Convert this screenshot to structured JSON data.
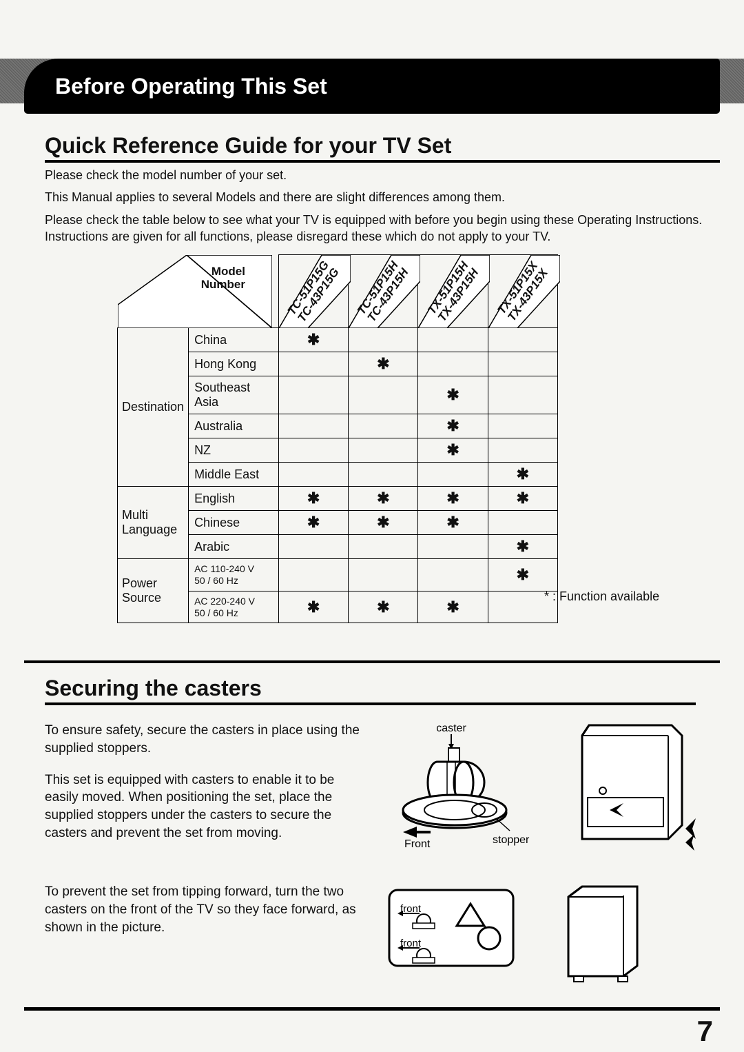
{
  "banner_title": "Before Operating This Set",
  "section1_title": "Quick Reference Guide for your TV Set",
  "intro_p1": "Please check the model number of your set.",
  "intro_p2": "This Manual applies to several Models and there are slight differences among them.",
  "intro_p3": "Please check the table below to see what your TV is equipped with before you begin using these Operating Instructions. Instructions are given for all functions, please disregard these which do not apply to your TV.",
  "model_table": {
    "header_label": "Model\nNumber",
    "columns": [
      {
        "line1": "TC-51P15G",
        "line2": "TC-43P15G"
      },
      {
        "line1": "TC-51P15H",
        "line2": "TC-43P15H"
      },
      {
        "line1": "TX-51P15H",
        "line2": "TX-43P15H"
      },
      {
        "line1": "TX-51P15X",
        "line2": "TX-43P15X"
      }
    ],
    "groups": [
      {
        "name": "Destination",
        "rows": [
          {
            "label": "China",
            "marks": [
              "*",
              "",
              "",
              ""
            ]
          },
          {
            "label": "Hong  Kong",
            "marks": [
              "",
              "*",
              "",
              ""
            ]
          },
          {
            "label": "Southeast Asia",
            "marks": [
              "",
              "",
              "*",
              ""
            ]
          },
          {
            "label": "Australia",
            "marks": [
              "",
              "",
              "*",
              ""
            ]
          },
          {
            "label": "NZ",
            "marks": [
              "",
              "",
              "*",
              ""
            ]
          },
          {
            "label": "Middle East",
            "marks": [
              "",
              "",
              "",
              "*"
            ]
          }
        ]
      },
      {
        "name": "Multi\nLanguage",
        "rows": [
          {
            "label": "English",
            "marks": [
              "*",
              "*",
              "*",
              "*"
            ]
          },
          {
            "label": "Chinese",
            "marks": [
              "*",
              "*",
              "*",
              ""
            ]
          },
          {
            "label": "Arabic",
            "marks": [
              "",
              "",
              "",
              "*"
            ]
          }
        ]
      },
      {
        "name": "Power\nSource",
        "rows": [
          {
            "label": "AC 110-240 V\n50 / 60 Hz",
            "small": true,
            "marks": [
              "",
              "",
              "",
              "*"
            ]
          },
          {
            "label": "AC 220-240 V\n50 / 60 Hz",
            "small": true,
            "marks": [
              "*",
              "*",
              "*",
              ""
            ]
          }
        ]
      }
    ],
    "legend": "* : Function  available"
  },
  "section2_title": "Securing the casters",
  "casters_p1": "To ensure safety, secure the casters in place using the supplied stoppers.",
  "casters_p2": "This set is equipped with casters to enable it to be easily moved. When positioning the set, place the supplied stoppers under the casters to secure the casters and prevent the set from moving.",
  "fig1": {
    "caster_label": "caster",
    "stopper_label": "stopper",
    "front_label": "Front"
  },
  "tip_text": "To prevent the set from tipping forward, turn the two casters on the front of the TV so they face forward, as shown in the picture.",
  "fig2": {
    "front_label": "front"
  },
  "page_number": "7",
  "colors": {
    "black": "#000000",
    "page_bg": "#f5f5f2"
  }
}
